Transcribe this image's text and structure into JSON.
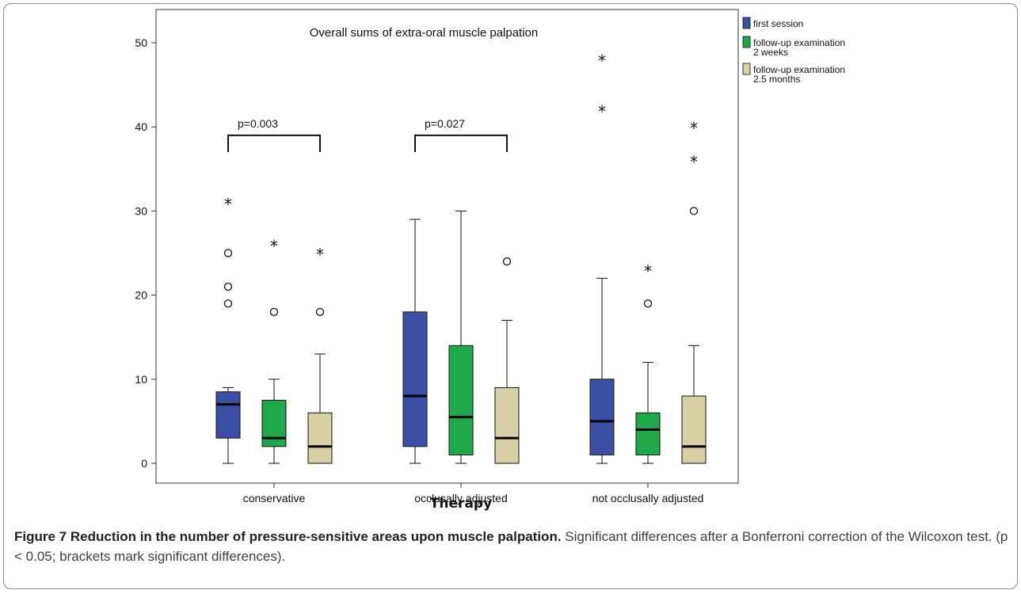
{
  "figure": {
    "caption_label": "Figure 7",
    "caption_title": "Reduction in the number of pressure-sensitive areas upon muscle palpation.",
    "caption_text": "Significant differences after a Bonferroni correction of the Wilcoxon test. (p < 0.05; brackets mark significant differences)."
  },
  "chart_data": {
    "type": "box",
    "title": "Overall sums of extra-oral muscle palpation",
    "xlabel": "Therapy",
    "ylabel": "",
    "ylim": [
      -2,
      52
    ],
    "yticks": [
      0,
      10,
      20,
      30,
      40,
      50
    ],
    "categories": [
      "conservative",
      "occlusally adjusted",
      "not occlusally adjusted"
    ],
    "legend_position": "top-right",
    "series": [
      {
        "name": "first session",
        "color": "#3b50a4",
        "boxes": [
          {
            "min": 0,
            "q1": 3,
            "median": 7,
            "q3": 8.5,
            "max": 9,
            "outliers": [
              19,
              21,
              25
            ],
            "extremes": [
              31
            ]
          },
          {
            "min": 0,
            "q1": 2,
            "median": 8,
            "q3": 18,
            "max": 29,
            "outliers": [],
            "extremes": []
          },
          {
            "min": 0,
            "q1": 1,
            "median": 5,
            "q3": 10,
            "max": 22,
            "outliers": [],
            "extremes": [
              42,
              48
            ]
          }
        ]
      },
      {
        "name": "follow-up examination\n2 weeks",
        "name_lines": [
          "follow-up examination",
          "2 weeks"
        ],
        "color": "#1fa84a",
        "boxes": [
          {
            "min": 0,
            "q1": 2,
            "median": 3,
            "q3": 7.5,
            "max": 10,
            "outliers": [
              18
            ],
            "extremes": [
              26
            ]
          },
          {
            "min": 0,
            "q1": 1,
            "median": 5.5,
            "q3": 14,
            "max": 30,
            "outliers": [],
            "extremes": []
          },
          {
            "min": 0,
            "q1": 1,
            "median": 4,
            "q3": 6,
            "max": 12,
            "outliers": [
              19
            ],
            "extremes": [
              23
            ]
          }
        ]
      },
      {
        "name": "follow-up examination\n2.5 months",
        "name_lines": [
          "follow-up examination",
          "2.5 months"
        ],
        "color": "#d8cfa4",
        "boxes": [
          {
            "min": 0,
            "q1": 0,
            "median": 2,
            "q3": 6,
            "max": 13,
            "outliers": [
              18
            ],
            "extremes": [
              25
            ]
          },
          {
            "min": 0,
            "q1": 0,
            "median": 3,
            "q3": 9,
            "max": 17,
            "outliers": [
              24
            ],
            "extremes": []
          },
          {
            "min": 0,
            "q1": 0,
            "median": 2,
            "q3": 8,
            "max": 14,
            "outliers": [
              30
            ],
            "extremes": [
              36,
              40
            ]
          }
        ]
      }
    ],
    "annotations": [
      {
        "label": "p=0.003",
        "category": 0,
        "from_series": 0,
        "to_series": 2,
        "y": 37
      },
      {
        "label": "p=0.027",
        "category": 1,
        "from_series": 0,
        "to_series": 2,
        "y": 37
      }
    ]
  }
}
